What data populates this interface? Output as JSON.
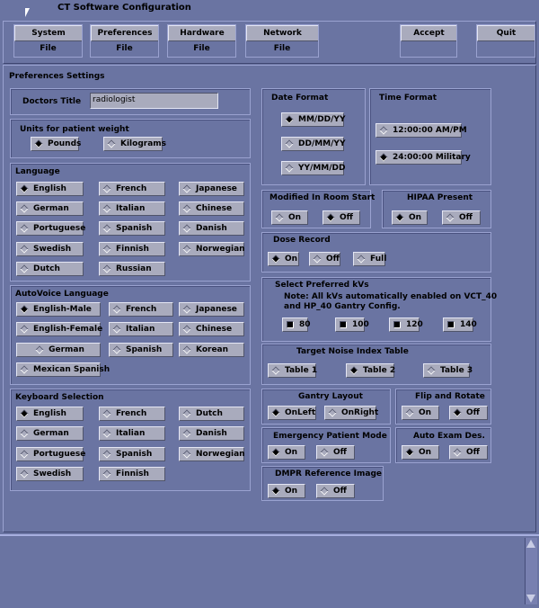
{
  "window": {
    "title": "CT Software Configuration"
  },
  "toolbar": [
    {
      "id": "system",
      "label": "System",
      "sub": "File"
    },
    {
      "id": "preferences",
      "label": "Preferences",
      "sub": "File"
    },
    {
      "id": "hardware",
      "label": "Hardware",
      "sub": "File"
    },
    {
      "id": "network",
      "label": "Network",
      "sub": "File"
    },
    {
      "id": "accept",
      "label": "Accept",
      "sub": ""
    },
    {
      "id": "quit",
      "label": "Quit",
      "sub": ""
    }
  ],
  "section_title": "Preferences Settings",
  "doctors_title": {
    "label": "Doctors Title",
    "value": "radiologist"
  },
  "kv_note": [
    "Note: All kVs automatically enabled on VCT_40",
    "and HP_40 Gantry Config."
  ],
  "groups": [
    {
      "id": "units",
      "title": "Units for patient weight",
      "type": "radio",
      "options": [
        {
          "label": "Pounds",
          "selected": true
        },
        {
          "label": "Kilograms",
          "selected": false
        }
      ]
    },
    {
      "id": "language",
      "title": "Language",
      "type": "radio",
      "options": [
        {
          "label": "English",
          "selected": true
        },
        {
          "label": "French",
          "selected": false
        },
        {
          "label": "Japanese",
          "selected": false
        },
        {
          "label": "German",
          "selected": false
        },
        {
          "label": "Italian",
          "selected": false
        },
        {
          "label": "Chinese",
          "selected": false
        },
        {
          "label": "Portuguese",
          "selected": false
        },
        {
          "label": "Spanish",
          "selected": false
        },
        {
          "label": "Danish",
          "selected": false
        },
        {
          "label": "Swedish",
          "selected": false
        },
        {
          "label": "Finnish",
          "selected": false
        },
        {
          "label": "Norwegian",
          "selected": false
        },
        {
          "label": "Dutch",
          "selected": false
        },
        {
          "label": "Russian",
          "selected": false
        }
      ]
    },
    {
      "id": "autovoice",
      "title": "AutoVoice Language",
      "type": "radio",
      "options": [
        {
          "label": "English-Male",
          "selected": true
        },
        {
          "label": "French",
          "selected": false
        },
        {
          "label": "Japanese",
          "selected": false
        },
        {
          "label": "English-Female",
          "selected": false
        },
        {
          "label": "Italian",
          "selected": false
        },
        {
          "label": "Chinese",
          "selected": false
        },
        {
          "label": "German",
          "selected": false
        },
        {
          "label": "Spanish",
          "selected": false
        },
        {
          "label": "Korean",
          "selected": false
        },
        {
          "label": "Mexican Spanish",
          "selected": false
        }
      ]
    },
    {
      "id": "keyboard",
      "title": "Keyboard Selection",
      "type": "radio",
      "options": [
        {
          "label": "English",
          "selected": true
        },
        {
          "label": "French",
          "selected": false
        },
        {
          "label": "Dutch",
          "selected": false
        },
        {
          "label": "German",
          "selected": false
        },
        {
          "label": "Italian",
          "selected": false
        },
        {
          "label": "Danish",
          "selected": false
        },
        {
          "label": "Portuguese",
          "selected": false
        },
        {
          "label": "Spanish",
          "selected": false
        },
        {
          "label": "Norwegian",
          "selected": false
        },
        {
          "label": "Swedish",
          "selected": false
        },
        {
          "label": "Finnish",
          "selected": false
        }
      ]
    },
    {
      "id": "date",
      "title": "Date Format",
      "type": "radio",
      "options": [
        {
          "label": "MM/DD/YY",
          "selected": true
        },
        {
          "label": "DD/MM/YY",
          "selected": false
        },
        {
          "label": "YY/MM/DD",
          "selected": false
        }
      ]
    },
    {
      "id": "time",
      "title": "Time Format",
      "type": "radio",
      "options": [
        {
          "label": "12:00:00 AM/PM",
          "selected": false
        },
        {
          "label": "24:00:00 Military",
          "selected": true
        }
      ]
    },
    {
      "id": "modified",
      "title": "Modified In Room Start",
      "type": "radio",
      "options": [
        {
          "label": "On",
          "selected": false
        },
        {
          "label": "Off",
          "selected": true
        }
      ]
    },
    {
      "id": "hipaa",
      "title": "HIPAA Present",
      "type": "radio",
      "options": [
        {
          "label": "On",
          "selected": true
        },
        {
          "label": "Off",
          "selected": false
        }
      ]
    },
    {
      "id": "dose",
      "title": "Dose Record",
      "type": "radio",
      "options": [
        {
          "label": "On",
          "selected": true
        },
        {
          "label": "Off",
          "selected": false
        },
        {
          "label": "Full",
          "selected": false
        }
      ]
    },
    {
      "id": "kvs",
      "title": "Select Preferred kVs",
      "type": "check",
      "options": [
        {
          "label": "80",
          "selected": true
        },
        {
          "label": "100",
          "selected": true
        },
        {
          "label": "120",
          "selected": true
        },
        {
          "label": "140",
          "selected": true
        }
      ]
    },
    {
      "id": "noise",
      "title": "Target Noise Index Table",
      "type": "radio",
      "options": [
        {
          "label": "Table 1",
          "selected": false
        },
        {
          "label": "Table 2",
          "selected": true
        },
        {
          "label": "Table 3",
          "selected": false
        }
      ]
    },
    {
      "id": "gantry",
      "title": "Gantry Layout",
      "type": "radio",
      "options": [
        {
          "label": "OnLeft",
          "selected": true
        },
        {
          "label": "OnRight",
          "selected": false
        }
      ]
    },
    {
      "id": "flip",
      "title": "Flip and Rotate",
      "type": "radio",
      "options": [
        {
          "label": "On",
          "selected": false
        },
        {
          "label": "Off",
          "selected": true
        }
      ]
    },
    {
      "id": "emergency",
      "title": "Emergency Patient Mode",
      "type": "radio",
      "options": [
        {
          "label": "On",
          "selected": true
        },
        {
          "label": "Off",
          "selected": false
        }
      ]
    },
    {
      "id": "autoexam",
      "title": "Auto Exam Des.",
      "type": "radio",
      "options": [
        {
          "label": "On",
          "selected": true
        },
        {
          "label": "Off",
          "selected": false
        }
      ]
    },
    {
      "id": "dmpr",
      "title": "DMPR Reference Image",
      "type": "radio",
      "options": [
        {
          "label": "On",
          "selected": true
        },
        {
          "label": "Off",
          "selected": false
        }
      ]
    }
  ],
  "colors": {
    "background": "#6a74a2",
    "button": "#a9abbd"
  }
}
